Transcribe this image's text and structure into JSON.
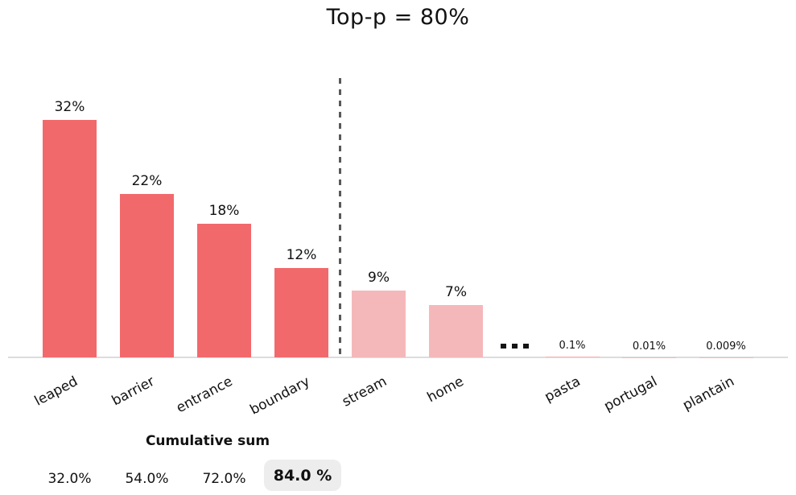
{
  "chart_data": {
    "type": "bar",
    "title": "Top-p = 80%",
    "unit": "percent",
    "ellipsis": "...",
    "bars": [
      {
        "label": "leaped",
        "value": 32,
        "value_label": "32%",
        "group": "included"
      },
      {
        "label": "barrier",
        "value": 22,
        "value_label": "22%",
        "group": "included"
      },
      {
        "label": "entrance",
        "value": 18,
        "value_label": "18%",
        "group": "included"
      },
      {
        "label": "boundary",
        "value": 12,
        "value_label": "12%",
        "group": "included"
      },
      {
        "label": "stream",
        "value": 9,
        "value_label": "9%",
        "group": "excluded"
      },
      {
        "label": "home",
        "value": 7,
        "value_label": "7%",
        "group": "excluded"
      },
      {
        "label": "pasta",
        "value": 0.1,
        "value_label": "0.1%",
        "group": "excluded"
      },
      {
        "label": "portugal",
        "value": 0.01,
        "value_label": "0.01%",
        "group": "excluded"
      },
      {
        "label": "plantain",
        "value": 0.009,
        "value_label": "0.009%",
        "group": "excluded"
      }
    ],
    "threshold_line": {
      "style": "dashed",
      "between": [
        "boundary",
        "stream"
      ]
    },
    "colors": {
      "included_bar": "#F2696C",
      "excluded_bar": "#F5B8BA",
      "dashed_line": "#595959",
      "axis_line": "#DCDCDC",
      "highlight_box": "#EDEDED",
      "text": "#111111"
    },
    "cumulative": {
      "title": "Cumulative sum",
      "values": [
        "32.0%",
        "54.0%",
        "72.0%",
        "84.0 %"
      ],
      "highlighted_index": 3
    },
    "layout_hints": {
      "grid": false,
      "legend": false,
      "x_tick_rotation_deg": 28
    }
  }
}
